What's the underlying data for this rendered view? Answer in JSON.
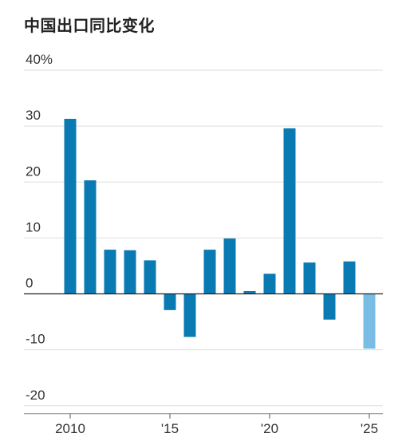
{
  "chart_data": {
    "type": "bar",
    "title": "中国出口同比变化",
    "xlabel": "",
    "ylabel": "",
    "ylim": [
      -20,
      40
    ],
    "y_ticks": [
      {
        "value": 40,
        "label": "40%"
      },
      {
        "value": 30,
        "label": "30"
      },
      {
        "value": 20,
        "label": "20"
      },
      {
        "value": 10,
        "label": "10"
      },
      {
        "value": 0,
        "label": "0"
      },
      {
        "value": -10,
        "label": "-10"
      },
      {
        "value": -20,
        "label": "-20"
      }
    ],
    "x_ticks": [
      {
        "year": 2010,
        "label": "2010"
      },
      {
        "year": 2015,
        "label": "'15"
      },
      {
        "year": 2020,
        "label": "'20"
      },
      {
        "year": 2025,
        "label": "'25"
      }
    ],
    "grid": true,
    "colors": {
      "bar": "#0a7ab3",
      "estimate_bar": "#79bde5",
      "grid": "#dddddd",
      "zero_line": "#222222",
      "text": "#333333"
    },
    "series": [
      {
        "values": [
          {
            "year": 2010,
            "value": 31.3
          },
          {
            "year": 2011,
            "value": 20.3
          },
          {
            "year": 2012,
            "value": 7.9
          },
          {
            "year": 2013,
            "value": 7.8
          },
          {
            "year": 2014,
            "value": 6.0
          },
          {
            "year": 2015,
            "value": -2.9
          },
          {
            "year": 2016,
            "value": -7.7
          },
          {
            "year": 2017,
            "value": 7.9
          },
          {
            "year": 2018,
            "value": 9.9
          },
          {
            "year": 2019,
            "value": 0.5
          },
          {
            "year": 2020,
            "value": 3.6
          },
          {
            "year": 2021,
            "value": 29.6
          },
          {
            "year": 2022,
            "value": 5.6
          },
          {
            "year": 2023,
            "value": -4.6
          },
          {
            "year": 2024,
            "value": 5.8
          },
          {
            "year": 2025,
            "value": -9.8,
            "estimate": true
          }
        ]
      }
    ]
  }
}
